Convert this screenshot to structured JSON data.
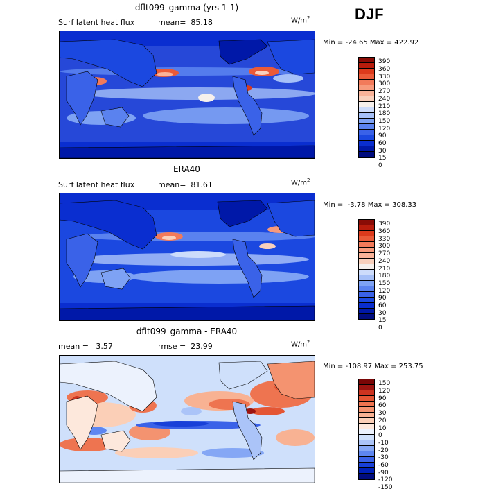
{
  "season": "DJF",
  "colors": {
    "abs_scale": [
      "#000c7e",
      "#0018a8",
      "#0a2ed0",
      "#1b48e0",
      "#3a62e8",
      "#5a82ef",
      "#7ea2f4",
      "#a6c0f8",
      "#cddcfb",
      "#f6f0ec",
      "#f9d0bc",
      "#f9b399",
      "#f79a7c",
      "#f27a5a",
      "#ea5a38",
      "#dc3a1c",
      "#b81c0c",
      "#8a0c06"
    ],
    "diff_scale": [
      "#000c7e",
      "#0020b8",
      "#1840d8",
      "#3a62e8",
      "#5e86f0",
      "#85a7f5",
      "#abc4f8",
      "#cfe0fb",
      "#ecf2fd",
      "#fde8dc",
      "#fbcfb7",
      "#f8b293",
      "#f49370",
      "#ee7450",
      "#e45634",
      "#cc3420",
      "#9c1410",
      "#7a0606"
    ]
  },
  "panels": [
    {
      "title": "dflt099_gamma (yrs 1-1)",
      "left_label": "Surf latent heat flux",
      "mean_label": "mean=  85.18",
      "units": "W/m",
      "units_exp": "2",
      "minmax": "Min = -24.65 Max = 422.92",
      "scale": "abs",
      "ticks": [
        "390",
        "360",
        "330",
        "300",
        "270",
        "240",
        "210",
        "180",
        "150",
        "120",
        "90",
        "60",
        "30",
        "15",
        "0"
      ]
    },
    {
      "title": "ERA40",
      "left_label": "Surf latent heat flux",
      "mean_label": "mean=  81.61",
      "units": "W/m",
      "units_exp": "2",
      "minmax": "Min =  -3.78 Max = 308.33",
      "scale": "abs",
      "ticks": [
        "390",
        "360",
        "330",
        "300",
        "270",
        "240",
        "210",
        "180",
        "150",
        "120",
        "90",
        "60",
        "30",
        "15",
        "0"
      ]
    },
    {
      "title": "dflt099_gamma - ERA40",
      "left_label": "mean =   3.57",
      "mean_label": "rmse =  23.99",
      "units": "W/m",
      "units_exp": "2",
      "minmax": "Min = -108.97 Max = 253.75",
      "scale": "diff",
      "ticks": [
        "150",
        "120",
        "90",
        "60",
        "30",
        "20",
        "10",
        "0",
        "-10",
        "-20",
        "-30",
        "-60",
        "-90",
        "-120",
        "-150"
      ]
    }
  ]
}
